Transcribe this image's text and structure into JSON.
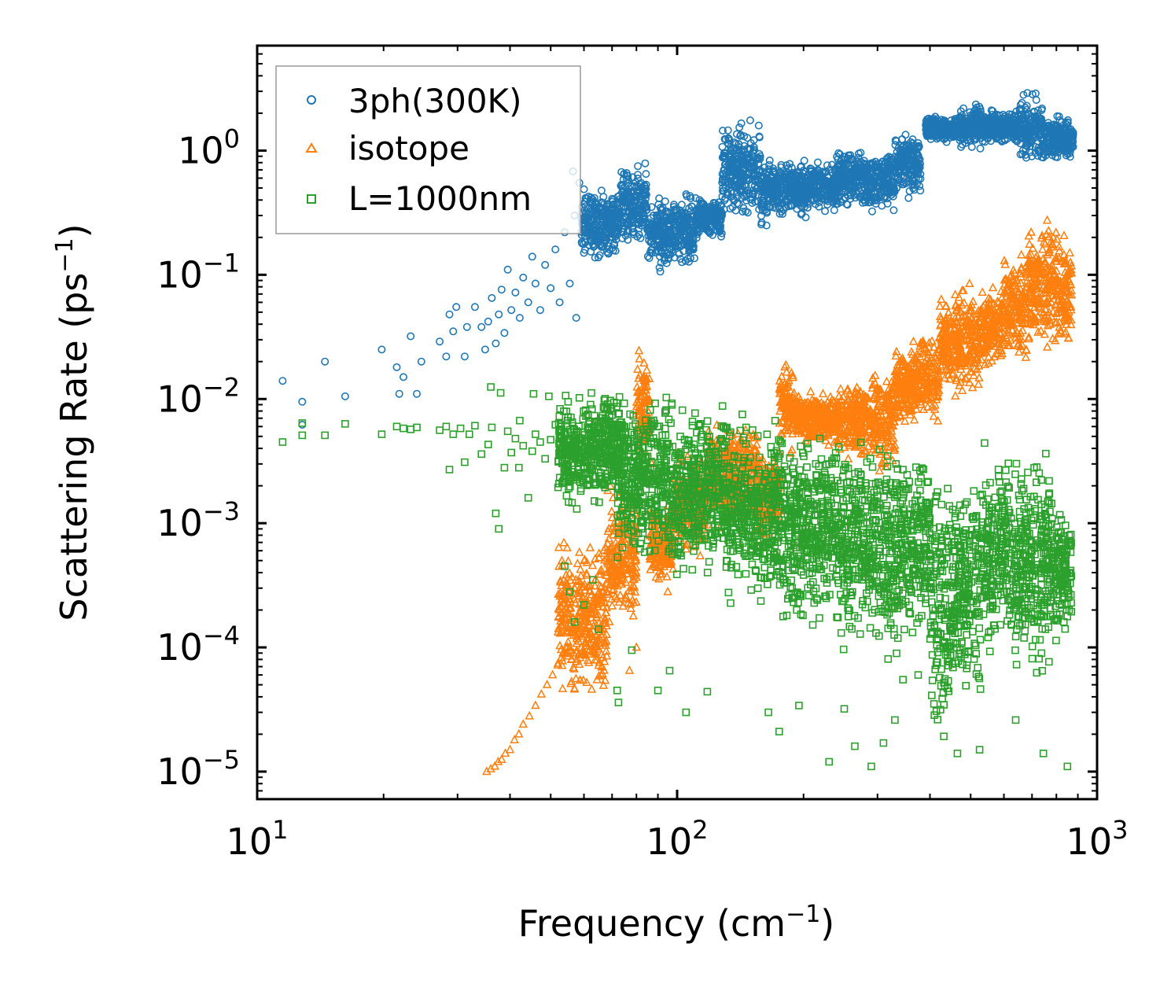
{
  "chart_data": {
    "type": "scatter",
    "title": "",
    "xscale": "log",
    "yscale": "log",
    "xlim": [
      10,
      1000
    ],
    "ylim": [
      6e-06,
      7
    ],
    "x_label": {
      "text": "Frequency (cm",
      "sup": "−1",
      "close": ")"
    },
    "y_label": {
      "text": "Scattering Rate (ps",
      "sup": "−1",
      "close": ")"
    },
    "x_ticks": [
      {
        "value": 10,
        "base": "10",
        "exp": "1"
      },
      {
        "value": 100,
        "base": "10",
        "exp": "2"
      },
      {
        "value": 1000,
        "base": "10",
        "exp": "3"
      }
    ],
    "y_ticks": [
      {
        "value": 1,
        "base": "10",
        "exp": "0"
      },
      {
        "value": 0.1,
        "base": "10",
        "exp": "−1"
      },
      {
        "value": 0.01,
        "base": "10",
        "exp": "−2"
      },
      {
        "value": 0.001,
        "base": "10",
        "exp": "−3"
      },
      {
        "value": 0.0001,
        "base": "10",
        "exp": "−4"
      },
      {
        "value": 1e-05,
        "base": "10",
        "exp": "−5"
      }
    ],
    "legend_position": "top-left",
    "series": [
      {
        "name": "3ph(300K)",
        "marker": "circle",
        "color": "#1f77b4",
        "sparse_points": [
          [
            11.5,
            0.014
          ],
          [
            12.8,
            0.0095
          ],
          [
            12.8,
            0.0062
          ],
          [
            14.5,
            0.02
          ],
          [
            16.2,
            0.0105
          ],
          [
            19.8,
            0.025
          ],
          [
            21.5,
            0.018
          ],
          [
            21.8,
            0.011
          ],
          [
            22.3,
            0.015
          ],
          [
            23.2,
            0.032
          ],
          [
            24.0,
            0.011
          ],
          [
            24.6,
            0.02
          ],
          [
            27.2,
            0.029
          ],
          [
            28.2,
            0.022
          ],
          [
            28.7,
            0.048
          ],
          [
            29.3,
            0.035
          ],
          [
            29.8,
            0.055
          ],
          [
            31.2,
            0.022
          ],
          [
            31.6,
            0.038
          ],
          [
            33.0,
            0.055
          ],
          [
            34.2,
            0.038
          ],
          [
            34.9,
            0.025
          ],
          [
            35.5,
            0.042
          ],
          [
            36.2,
            0.065
          ],
          [
            37.0,
            0.028
          ],
          [
            37.6,
            0.048
          ],
          [
            38.2,
            0.076
          ],
          [
            38.8,
            0.034
          ],
          [
            39.5,
            0.11
          ],
          [
            40.3,
            0.052
          ],
          [
            41.2,
            0.072
          ],
          [
            42.2,
            0.045
          ],
          [
            43.0,
            0.095
          ],
          [
            44.2,
            0.06
          ],
          [
            45.2,
            0.14
          ],
          [
            46.0,
            0.085
          ],
          [
            47.2,
            0.052
          ],
          [
            48.5,
            0.12
          ],
          [
            50.0,
            0.078
          ],
          [
            51.3,
            0.16
          ],
          [
            52.5,
            0.06
          ],
          [
            54.0,
            0.22
          ],
          [
            55.5,
            0.085
          ],
          [
            57.0,
            0.3
          ],
          [
            58.5,
            0.55
          ],
          [
            56.5,
            0.68
          ],
          [
            57.5,
            0.045
          ],
          [
            60.0,
            0.15
          ]
        ],
        "bands": [
          [
            59,
            72,
            0.12,
            0.6
          ],
          [
            72,
            85,
            0.15,
            0.9
          ],
          [
            85,
            110,
            0.1,
            0.5
          ],
          [
            110,
            128,
            0.18,
            0.45
          ],
          [
            128,
            158,
            0.22,
            2.2
          ],
          [
            158,
            180,
            0.22,
            0.9
          ],
          [
            180,
            240,
            0.28,
            0.9
          ],
          [
            240,
            280,
            0.3,
            1.2
          ],
          [
            280,
            330,
            0.3,
            1.1
          ],
          [
            330,
            380,
            0.4,
            1.6
          ],
          [
            390,
            470,
            1.1,
            2.0
          ],
          [
            470,
            530,
            1.0,
            2.5
          ],
          [
            530,
            650,
            1.1,
            2.2
          ],
          [
            650,
            740,
            0.7,
            3.2
          ],
          [
            740,
            880,
            0.8,
            2.1
          ]
        ]
      },
      {
        "name": "isotope",
        "marker": "triangle",
        "color": "#ff7f0e",
        "sparse_points": [
          [
            35.2,
            1e-05
          ],
          [
            36.0,
            1.05e-05
          ],
          [
            36.8,
            1.1e-05
          ],
          [
            37.5,
            1.2e-05
          ],
          [
            38.2,
            1.25e-05
          ],
          [
            39.0,
            1.4e-05
          ],
          [
            40.0,
            1.5e-05
          ],
          [
            41.0,
            1.8e-05
          ],
          [
            42.0,
            2e-05
          ],
          [
            43.0,
            2.4e-05
          ],
          [
            44.5,
            2.8e-05
          ],
          [
            46.0,
            3.4e-05
          ],
          [
            47.5,
            4.2e-05
          ],
          [
            49.0,
            5e-05
          ],
          [
            50.5,
            6e-05
          ],
          [
            52.0,
            7.2e-05
          ],
          [
            53.5,
            9e-05
          ],
          [
            55.0,
            0.00011
          ],
          [
            56.5,
            0.00014
          ],
          [
            58.0,
            0.00018
          ],
          [
            60.0,
            0.00022
          ],
          [
            62.0,
            0.00028
          ],
          [
            64.0,
            0.00035
          ],
          [
            66.0,
            0.00042
          ],
          [
            68.0,
            0.00052
          ],
          [
            70.0,
            0.00065
          ],
          [
            72.5,
            0.00082
          ],
          [
            75.0,
            0.001
          ],
          [
            78.0,
            0.0013
          ],
          [
            81.0,
            0.0016
          ],
          [
            84.0,
            0.0022
          ],
          [
            87.0,
            0.003
          ],
          [
            54.5,
            0.00032
          ],
          [
            61.0,
            0.00048
          ],
          [
            69.0,
            0.00016
          ],
          [
            58.0,
            0.00013
          ],
          [
            64.0,
            9e-05
          ],
          [
            77.0,
            6.5e-05
          ],
          [
            80.0,
            0.0001
          ],
          [
            95.0,
            0.00028
          ]
        ],
        "bands": [
          [
            52,
            68,
            3e-05,
            0.0009
          ],
          [
            68,
            80,
            0.00012,
            0.0025
          ],
          [
            80,
            86,
            0.003,
            0.03
          ],
          [
            86,
            98,
            0.0003,
            0.0015
          ],
          [
            98,
            118,
            0.0005,
            0.004
          ],
          [
            118,
            155,
            0.0007,
            0.008
          ],
          [
            155,
            175,
            0.0007,
            0.004
          ],
          [
            175,
            190,
            0.003,
            0.025
          ],
          [
            190,
            240,
            0.004,
            0.012
          ],
          [
            240,
            290,
            0.003,
            0.015
          ],
          [
            290,
            330,
            0.002,
            0.022
          ],
          [
            330,
            360,
            0.006,
            0.026
          ],
          [
            360,
            420,
            0.005,
            0.04
          ],
          [
            420,
            530,
            0.008,
            0.1
          ],
          [
            530,
            600,
            0.015,
            0.09
          ],
          [
            600,
            680,
            0.018,
            0.18
          ],
          [
            680,
            790,
            0.02,
            0.35
          ],
          [
            790,
            870,
            0.02,
            0.28
          ]
        ]
      },
      {
        "name": "L=1000nm",
        "marker": "square",
        "color": "#2ca02c",
        "sparse_points": [
          [
            11.5,
            0.0045
          ],
          [
            12.8,
            0.0051
          ],
          [
            12.8,
            0.0064
          ],
          [
            14.5,
            0.0051
          ],
          [
            16.2,
            0.0063
          ],
          [
            19.8,
            0.0052
          ],
          [
            21.5,
            0.006
          ],
          [
            22.3,
            0.0058
          ],
          [
            23.2,
            0.0057
          ],
          [
            24.0,
            0.0059
          ],
          [
            27.2,
            0.0056
          ],
          [
            28.2,
            0.006
          ],
          [
            28.7,
            0.0027
          ],
          [
            29.3,
            0.0052
          ],
          [
            30.5,
            0.0058
          ],
          [
            31.2,
            0.0031
          ],
          [
            32.0,
            0.0052
          ],
          [
            33.0,
            0.0061
          ],
          [
            34.2,
            0.0036
          ],
          [
            35.5,
            0.0043
          ],
          [
            36.2,
            0.0059
          ],
          [
            37.0,
            0.0012
          ],
          [
            37.6,
            0.0009
          ],
          [
            38.8,
            0.0028
          ],
          [
            39.5,
            0.0055
          ],
          [
            40.3,
            0.0037
          ],
          [
            41.2,
            0.0048
          ],
          [
            42.2,
            0.0067
          ],
          [
            43.0,
            0.0042
          ],
          [
            44.2,
            0.0016
          ],
          [
            45.2,
            0.0038
          ],
          [
            46.0,
            0.0052
          ],
          [
            47.2,
            0.0045
          ],
          [
            48.5,
            0.0033
          ],
          [
            50.0,
            0.0047
          ],
          [
            51.3,
            0.0062
          ],
          [
            52.5,
            0.0039
          ],
          [
            54.0,
            0.00045
          ],
          [
            55.5,
            0.00028
          ],
          [
            57.0,
            0.00016
          ],
          [
            60.0,
            0.00022
          ],
          [
            63.0,
            0.00035
          ],
          [
            65.0,
            0.00014
          ],
          [
            72.0,
            4.5e-05
          ],
          [
            72.5,
            3.6e-05
          ],
          [
            78.0,
            9.5e-05
          ],
          [
            90.0,
            4.5e-05
          ],
          [
            96.0,
            6.5e-05
          ],
          [
            105.0,
            3e-05
          ],
          [
            118.0,
            4.4e-05
          ],
          [
            165.0,
            3e-05
          ],
          [
            175.0,
            2.1e-05
          ],
          [
            195.0,
            3.4e-05
          ],
          [
            230.0,
            1.2e-05
          ],
          [
            250.0,
            3.2e-05
          ],
          [
            265.0,
            1.6e-05
          ],
          [
            290.0,
            1.1e-05
          ],
          [
            310.0,
            1.7e-05
          ],
          [
            330.0,
            2.6e-05
          ],
          [
            345.0,
            5.5e-05
          ],
          [
            375.0,
            6e-05
          ],
          [
            465.0,
            1.4e-05
          ],
          [
            525.0,
            1.5e-05
          ],
          [
            640.0,
            2.6e-05
          ],
          [
            745.0,
            1.4e-05
          ],
          [
            850.0,
            1.1e-05
          ],
          [
            42.0,
            0.0028
          ],
          [
            36.0,
            0.0125
          ],
          [
            38.0,
            0.0112
          ],
          [
            45.5,
            0.011
          ],
          [
            49.5,
            0.0105
          ],
          [
            55.0,
            0.0095
          ]
        ],
        "bands": [
          [
            52,
            75,
            0.0012,
            0.013
          ],
          [
            72,
            95,
            0.0004,
            0.012
          ],
          [
            95,
            130,
            0.00028,
            0.011
          ],
          [
            130,
            175,
            0.0002,
            0.009
          ],
          [
            175,
            240,
            0.00012,
            0.007
          ],
          [
            240,
            300,
            8e-05,
            0.006
          ],
          [
            300,
            360,
            6e-05,
            0.006
          ],
          [
            360,
            400,
            0.0001,
            0.005
          ],
          [
            400,
            450,
            1e-05,
            0.005
          ],
          [
            450,
            530,
            3e-05,
            0.004
          ],
          [
            530,
            620,
            6e-05,
            0.005
          ],
          [
            620,
            700,
            5e-05,
            0.005
          ],
          [
            700,
            780,
            4e-05,
            0.006
          ],
          [
            780,
            870,
            0.0001,
            0.002
          ]
        ]
      }
    ]
  }
}
